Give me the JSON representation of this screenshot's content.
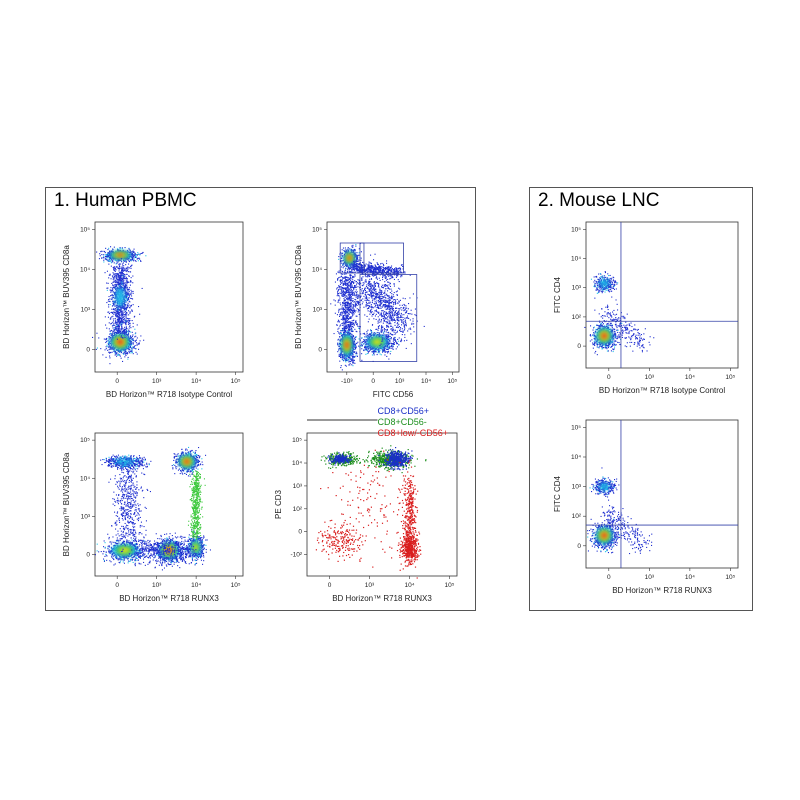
{
  "panels": {
    "human": {
      "title": "1. Human PBMC"
    },
    "mouse": {
      "title": "2. Mouse LNC"
    }
  },
  "colors": {
    "density_low": "#1f2fd0",
    "density_mid1": "#22c4e8",
    "density_mid2": "#3ec93e",
    "density_mid3": "#f4e21a",
    "density_high": "#e3211c",
    "gate": "#3340a8",
    "legend_cd56pos": "#1a2fc7",
    "legend_cd56neg": "#1e8f1e",
    "legend_low": "#d91e1e"
  },
  "chart_data": [
    {
      "id": "p1",
      "type": "scatter",
      "title": "",
      "xlabel": "BD Horizon™ R718 Isotype Control",
      "ylabel": "BD Horizon™ BUV395 CD8a",
      "x_ticks": [
        "0",
        "10³",
        "10⁴",
        "10⁵"
      ],
      "y_ticks": [
        "0",
        "10³",
        "10⁴",
        "10⁵"
      ],
      "populations": [
        {
          "x": 0,
          "y": 0,
          "density": "high"
        },
        {
          "x": 0,
          "y": 20000,
          "density": "high"
        },
        {
          "x": 0,
          "y": 2000,
          "density": "low"
        }
      ]
    },
    {
      "id": "p2",
      "type": "scatter",
      "title": "",
      "xlabel": "FITC CD56",
      "ylabel": "BD Horizon™ BUV395 CD8a",
      "x_ticks": [
        "-10³",
        "0",
        "10³",
        "10⁴",
        "10⁵"
      ],
      "y_ticks": [
        "0",
        "10³",
        "10⁴",
        "10⁵"
      ],
      "populations": [
        {
          "x": 0,
          "y": 0,
          "density": "high"
        },
        {
          "x": 200,
          "y": 20000,
          "density": "high"
        },
        {
          "x": 3000,
          "y": 0,
          "density": "mid"
        },
        {
          "x": 3000,
          "y": 15000,
          "density": "low"
        }
      ],
      "gates": 3
    },
    {
      "id": "p3",
      "type": "scatter",
      "title": "",
      "xlabel": "BD Horizon™ R718 RUNX3",
      "ylabel": "BD Horizon™ BUV395 CD8a",
      "x_ticks": [
        "0",
        "10³",
        "10⁴",
        "10⁵"
      ],
      "y_ticks": [
        "0",
        "10³",
        "10⁴",
        "10⁵"
      ],
      "populations": [
        {
          "x": 0,
          "y": 20000,
          "density": "low"
        },
        {
          "x": 0,
          "y": 0,
          "density": "mid"
        },
        {
          "x": 1500,
          "y": 0,
          "density": "high"
        },
        {
          "x": 5000,
          "y": 20000,
          "density": "high"
        },
        {
          "x": 7000,
          "y": 0,
          "density": "mid"
        }
      ]
    },
    {
      "id": "p4",
      "type": "scatter",
      "title": "",
      "xlabel": "BD Horizon™ R718 RUNX3",
      "ylabel": "PE CD3",
      "x_ticks": [
        "0",
        "10³",
        "10⁴",
        "10⁵"
      ],
      "y_ticks": [
        "-10²",
        "0",
        "10²",
        "10³",
        "10⁴",
        "10⁵"
      ],
      "series": [
        {
          "name": "CD8+CD56+"
        },
        {
          "name": "CD8+CD56-"
        },
        {
          "name": "CD8+low/-CD56+"
        }
      ]
    },
    {
      "id": "m1",
      "type": "scatter",
      "title": "",
      "xlabel": "BD Horizon™ R718 Isotype Control",
      "ylabel": "FITC CD4",
      "x_ticks": [
        "0",
        "10³",
        "10⁴",
        "10⁵"
      ],
      "y_ticks": [
        "0",
        "10²",
        "10³",
        "10⁴",
        "10⁵"
      ],
      "populations": [
        {
          "x": 0,
          "y": 100,
          "density": "high"
        },
        {
          "x": 0,
          "y": 3000,
          "density": "low"
        }
      ],
      "quadrant_gate": true
    },
    {
      "id": "m2",
      "type": "scatter",
      "title": "",
      "xlabel": "BD Horizon™ R718 RUNX3",
      "ylabel": "FITC CD4",
      "x_ticks": [
        "0",
        "10³",
        "10⁴",
        "10⁵"
      ],
      "y_ticks": [
        "0",
        "10²",
        "10³",
        "10⁴",
        "10⁵"
      ],
      "populations": [
        {
          "x": 0,
          "y": 100,
          "density": "high"
        },
        {
          "x": 0,
          "y": 3000,
          "density": "low"
        }
      ],
      "quadrant_gate": true
    }
  ]
}
